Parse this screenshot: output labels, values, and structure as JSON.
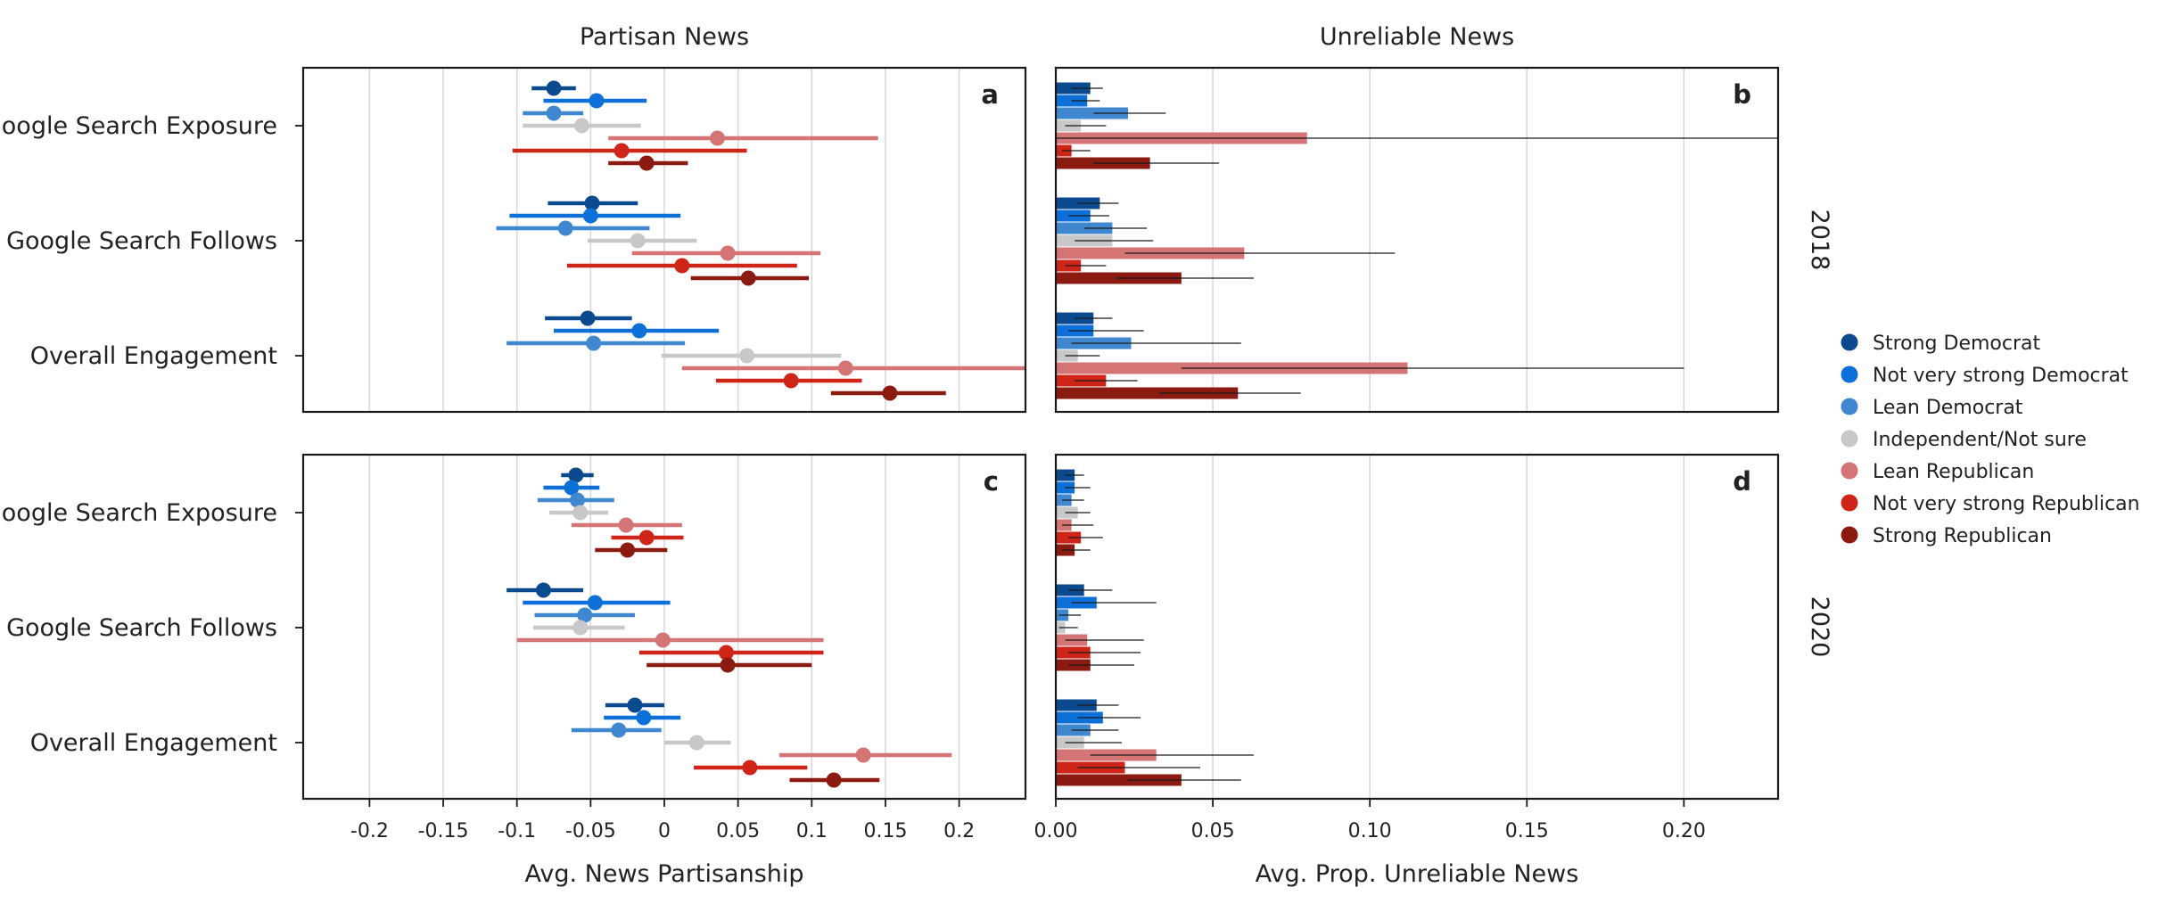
{
  "chart_data": {
    "type": "scatter",
    "columns": {
      "partisan": {
        "title": "Partisan News",
        "xlabel": "Avg. News Partisanship",
        "xlim": [
          -0.245,
          0.245
        ],
        "ticks": [
          -0.2,
          -0.15,
          -0.1,
          -0.05,
          0,
          0.05,
          0.1,
          0.15,
          0.2
        ],
        "tick_labels": [
          "-0.2",
          "-0.15",
          "-0.1",
          "-0.05",
          "0",
          "0.05",
          "0.1",
          "0.15",
          "0.2"
        ]
      },
      "unreliable": {
        "title": "Unreliable News",
        "xlabel": "Avg. Prop. Unreliable News",
        "xlim": [
          0,
          0.23
        ],
        "ticks": [
          0,
          0.05,
          0.1,
          0.15,
          0.2
        ],
        "tick_labels": [
          "0.00",
          "0.05",
          "0.10",
          "0.15",
          "0.20"
        ]
      }
    },
    "categories": [
      "Google Search Exposure",
      "Google Search Follows",
      "Overall Engagement"
    ],
    "years": [
      "2018",
      "2020"
    ],
    "series": [
      {
        "name": "Strong Democrat",
        "color": "#0b4a8e"
      },
      {
        "name": "Not very strong Democrat",
        "color": "#0d6fd8"
      },
      {
        "name": "Lean Democrat",
        "color": "#3f88cf"
      },
      {
        "name": "Independent/Not sure",
        "color": "#c8c8c8"
      },
      {
        "name": "Lean Republican",
        "color": "#d47474"
      },
      {
        "name": "Not very strong Republican",
        "color": "#cf2418"
      },
      {
        "name": "Strong Republican",
        "color": "#8b1a10"
      }
    ],
    "panels": [
      {
        "letter": "a",
        "column": "partisan",
        "year": "2018",
        "kind": "point",
        "data": [
          [
            [
              -0.075,
              -0.09,
              -0.06
            ],
            [
              -0.046,
              -0.082,
              -0.012
            ],
            [
              -0.075,
              -0.096,
              -0.055
            ],
            [
              -0.056,
              -0.096,
              -0.016
            ],
            [
              0.036,
              -0.038,
              0.145
            ],
            [
              -0.029,
              -0.103,
              0.056
            ],
            [
              -0.012,
              -0.038,
              0.016
            ]
          ],
          [
            [
              -0.049,
              -0.079,
              -0.018
            ],
            [
              -0.05,
              -0.105,
              0.011
            ],
            [
              -0.067,
              -0.114,
              -0.01
            ],
            [
              -0.018,
              -0.052,
              0.022
            ],
            [
              0.043,
              -0.022,
              0.106
            ],
            [
              0.012,
              -0.066,
              0.09
            ],
            [
              0.057,
              0.018,
              0.098
            ]
          ],
          [
            [
              -0.052,
              -0.081,
              -0.022
            ],
            [
              -0.017,
              -0.075,
              0.037
            ],
            [
              -0.048,
              -0.107,
              0.014
            ],
            [
              0.056,
              -0.002,
              0.12
            ],
            [
              0.123,
              0.012,
              0.245
            ],
            [
              0.086,
              0.035,
              0.134
            ],
            [
              0.153,
              0.113,
              0.191
            ]
          ]
        ]
      },
      {
        "letter": "b",
        "column": "unreliable",
        "year": "2018",
        "kind": "bar",
        "data": [
          [
            [
              0.011,
              0.005,
              0.015
            ],
            [
              0.01,
              0.005,
              0.014
            ],
            [
              0.023,
              0.012,
              0.035
            ],
            [
              0.008,
              0.003,
              0.016
            ],
            [
              0.08,
              0.0,
              0.23
            ],
            [
              0.005,
              0.002,
              0.011
            ],
            [
              0.03,
              0.012,
              0.052
            ]
          ],
          [
            [
              0.014,
              0.007,
              0.02
            ],
            [
              0.011,
              0.004,
              0.017
            ],
            [
              0.018,
              0.009,
              0.029
            ],
            [
              0.018,
              0.006,
              0.031
            ],
            [
              0.06,
              0.022,
              0.108
            ],
            [
              0.008,
              0.003,
              0.016
            ],
            [
              0.04,
              0.019,
              0.063
            ]
          ],
          [
            [
              0.012,
              0.006,
              0.018
            ],
            [
              0.012,
              0.004,
              0.028
            ],
            [
              0.024,
              0.005,
              0.059
            ],
            [
              0.007,
              0.003,
              0.014
            ],
            [
              0.112,
              0.04,
              0.2
            ],
            [
              0.016,
              0.006,
              0.026
            ],
            [
              0.058,
              0.033,
              0.078
            ]
          ]
        ]
      },
      {
        "letter": "c",
        "column": "partisan",
        "year": "2020",
        "kind": "point",
        "data": [
          [
            [
              -0.06,
              -0.07,
              -0.048
            ],
            [
              -0.063,
              -0.082,
              -0.044
            ],
            [
              -0.059,
              -0.086,
              -0.034
            ],
            [
              -0.057,
              -0.078,
              -0.038
            ],
            [
              -0.026,
              -0.063,
              0.012
            ],
            [
              -0.012,
              -0.036,
              0.013
            ],
            [
              -0.025,
              -0.047,
              0.002
            ]
          ],
          [
            [
              -0.082,
              -0.107,
              -0.055
            ],
            [
              -0.047,
              -0.096,
              0.004
            ],
            [
              -0.054,
              -0.088,
              -0.02
            ],
            [
              -0.057,
              -0.089,
              -0.027
            ],
            [
              -0.001,
              -0.1,
              0.108
            ],
            [
              0.042,
              -0.017,
              0.108
            ],
            [
              0.043,
              -0.012,
              0.1
            ]
          ],
          [
            [
              -0.02,
              -0.04,
              0.0
            ],
            [
              -0.014,
              -0.041,
              0.011
            ],
            [
              -0.031,
              -0.063,
              -0.002
            ],
            [
              0.022,
              0.0,
              0.045
            ],
            [
              0.135,
              0.078,
              0.195
            ],
            [
              0.058,
              0.02,
              0.097
            ],
            [
              0.115,
              0.085,
              0.146
            ]
          ]
        ]
      },
      {
        "letter": "d",
        "column": "unreliable",
        "year": "2020",
        "kind": "bar",
        "data": [
          [
            [
              0.006,
              0.003,
              0.009
            ],
            [
              0.006,
              0.003,
              0.011
            ],
            [
              0.005,
              0.002,
              0.009
            ],
            [
              0.007,
              0.003,
              0.011
            ],
            [
              0.005,
              0.002,
              0.012
            ],
            [
              0.008,
              0.004,
              0.015
            ],
            [
              0.006,
              0.002,
              0.011
            ]
          ],
          [
            [
              0.009,
              0.004,
              0.018
            ],
            [
              0.013,
              0.005,
              0.032
            ],
            [
              0.004,
              0.001,
              0.008
            ],
            [
              0.003,
              0.001,
              0.007
            ],
            [
              0.01,
              0.003,
              0.028
            ],
            [
              0.011,
              0.004,
              0.027
            ],
            [
              0.011,
              0.004,
              0.025
            ]
          ],
          [
            [
              0.013,
              0.007,
              0.02
            ],
            [
              0.015,
              0.007,
              0.027
            ],
            [
              0.011,
              0.005,
              0.02
            ],
            [
              0.009,
              0.003,
              0.021
            ],
            [
              0.032,
              0.011,
              0.063
            ],
            [
              0.022,
              0.007,
              0.046
            ],
            [
              0.04,
              0.023,
              0.059
            ]
          ]
        ]
      }
    ]
  }
}
